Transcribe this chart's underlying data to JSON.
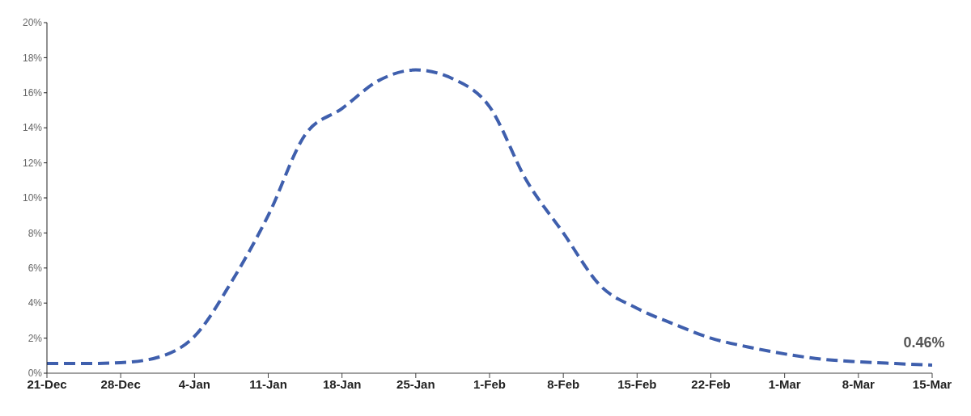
{
  "chart_data": {
    "type": "line",
    "categories": [
      "21-Dec",
      null,
      "28-Dec",
      null,
      "4-Jan",
      null,
      "11-Jan",
      null,
      "18-Jan",
      null,
      "25-Jan",
      null,
      "1-Feb",
      null,
      "8-Feb",
      null,
      "15-Feb",
      null,
      "22-Feb",
      null,
      "1-Mar",
      null,
      "8-Mar",
      null,
      "15-Mar"
    ],
    "series": [
      {
        "color": "#3f5fad",
        "values": [
          0.55,
          0.55,
          0.6,
          0.9,
          2.1,
          5.2,
          9.0,
          13.6,
          15.1,
          16.7,
          17.3,
          16.8,
          15.2,
          11.0,
          8.0,
          5.0,
          3.7,
          2.8,
          2.0,
          1.5,
          1.1,
          0.8,
          0.65,
          0.55,
          0.46
        ]
      }
    ],
    "ylim": [
      0,
      20
    ],
    "yticks": [
      {
        "value": 0,
        "label": "0%"
      },
      {
        "value": 2,
        "label": "2%"
      },
      {
        "value": 4,
        "label": "4%"
      },
      {
        "value": 6,
        "label": "6%"
      },
      {
        "value": 8,
        "label": "8%"
      },
      {
        "value": 10,
        "label": "10%"
      },
      {
        "value": 12,
        "label": "12%"
      },
      {
        "value": 14,
        "label": "14%"
      },
      {
        "value": 16,
        "label": "16%"
      },
      {
        "value": 18,
        "label": "18%"
      },
      {
        "value": 20,
        "label": "20%"
      }
    ],
    "grid": false,
    "legend": false,
    "marker": "none",
    "line_style": "dashed",
    "annotations": [
      {
        "text": "0.46%",
        "x": "15-Mar",
        "y": 0.46
      }
    ]
  }
}
